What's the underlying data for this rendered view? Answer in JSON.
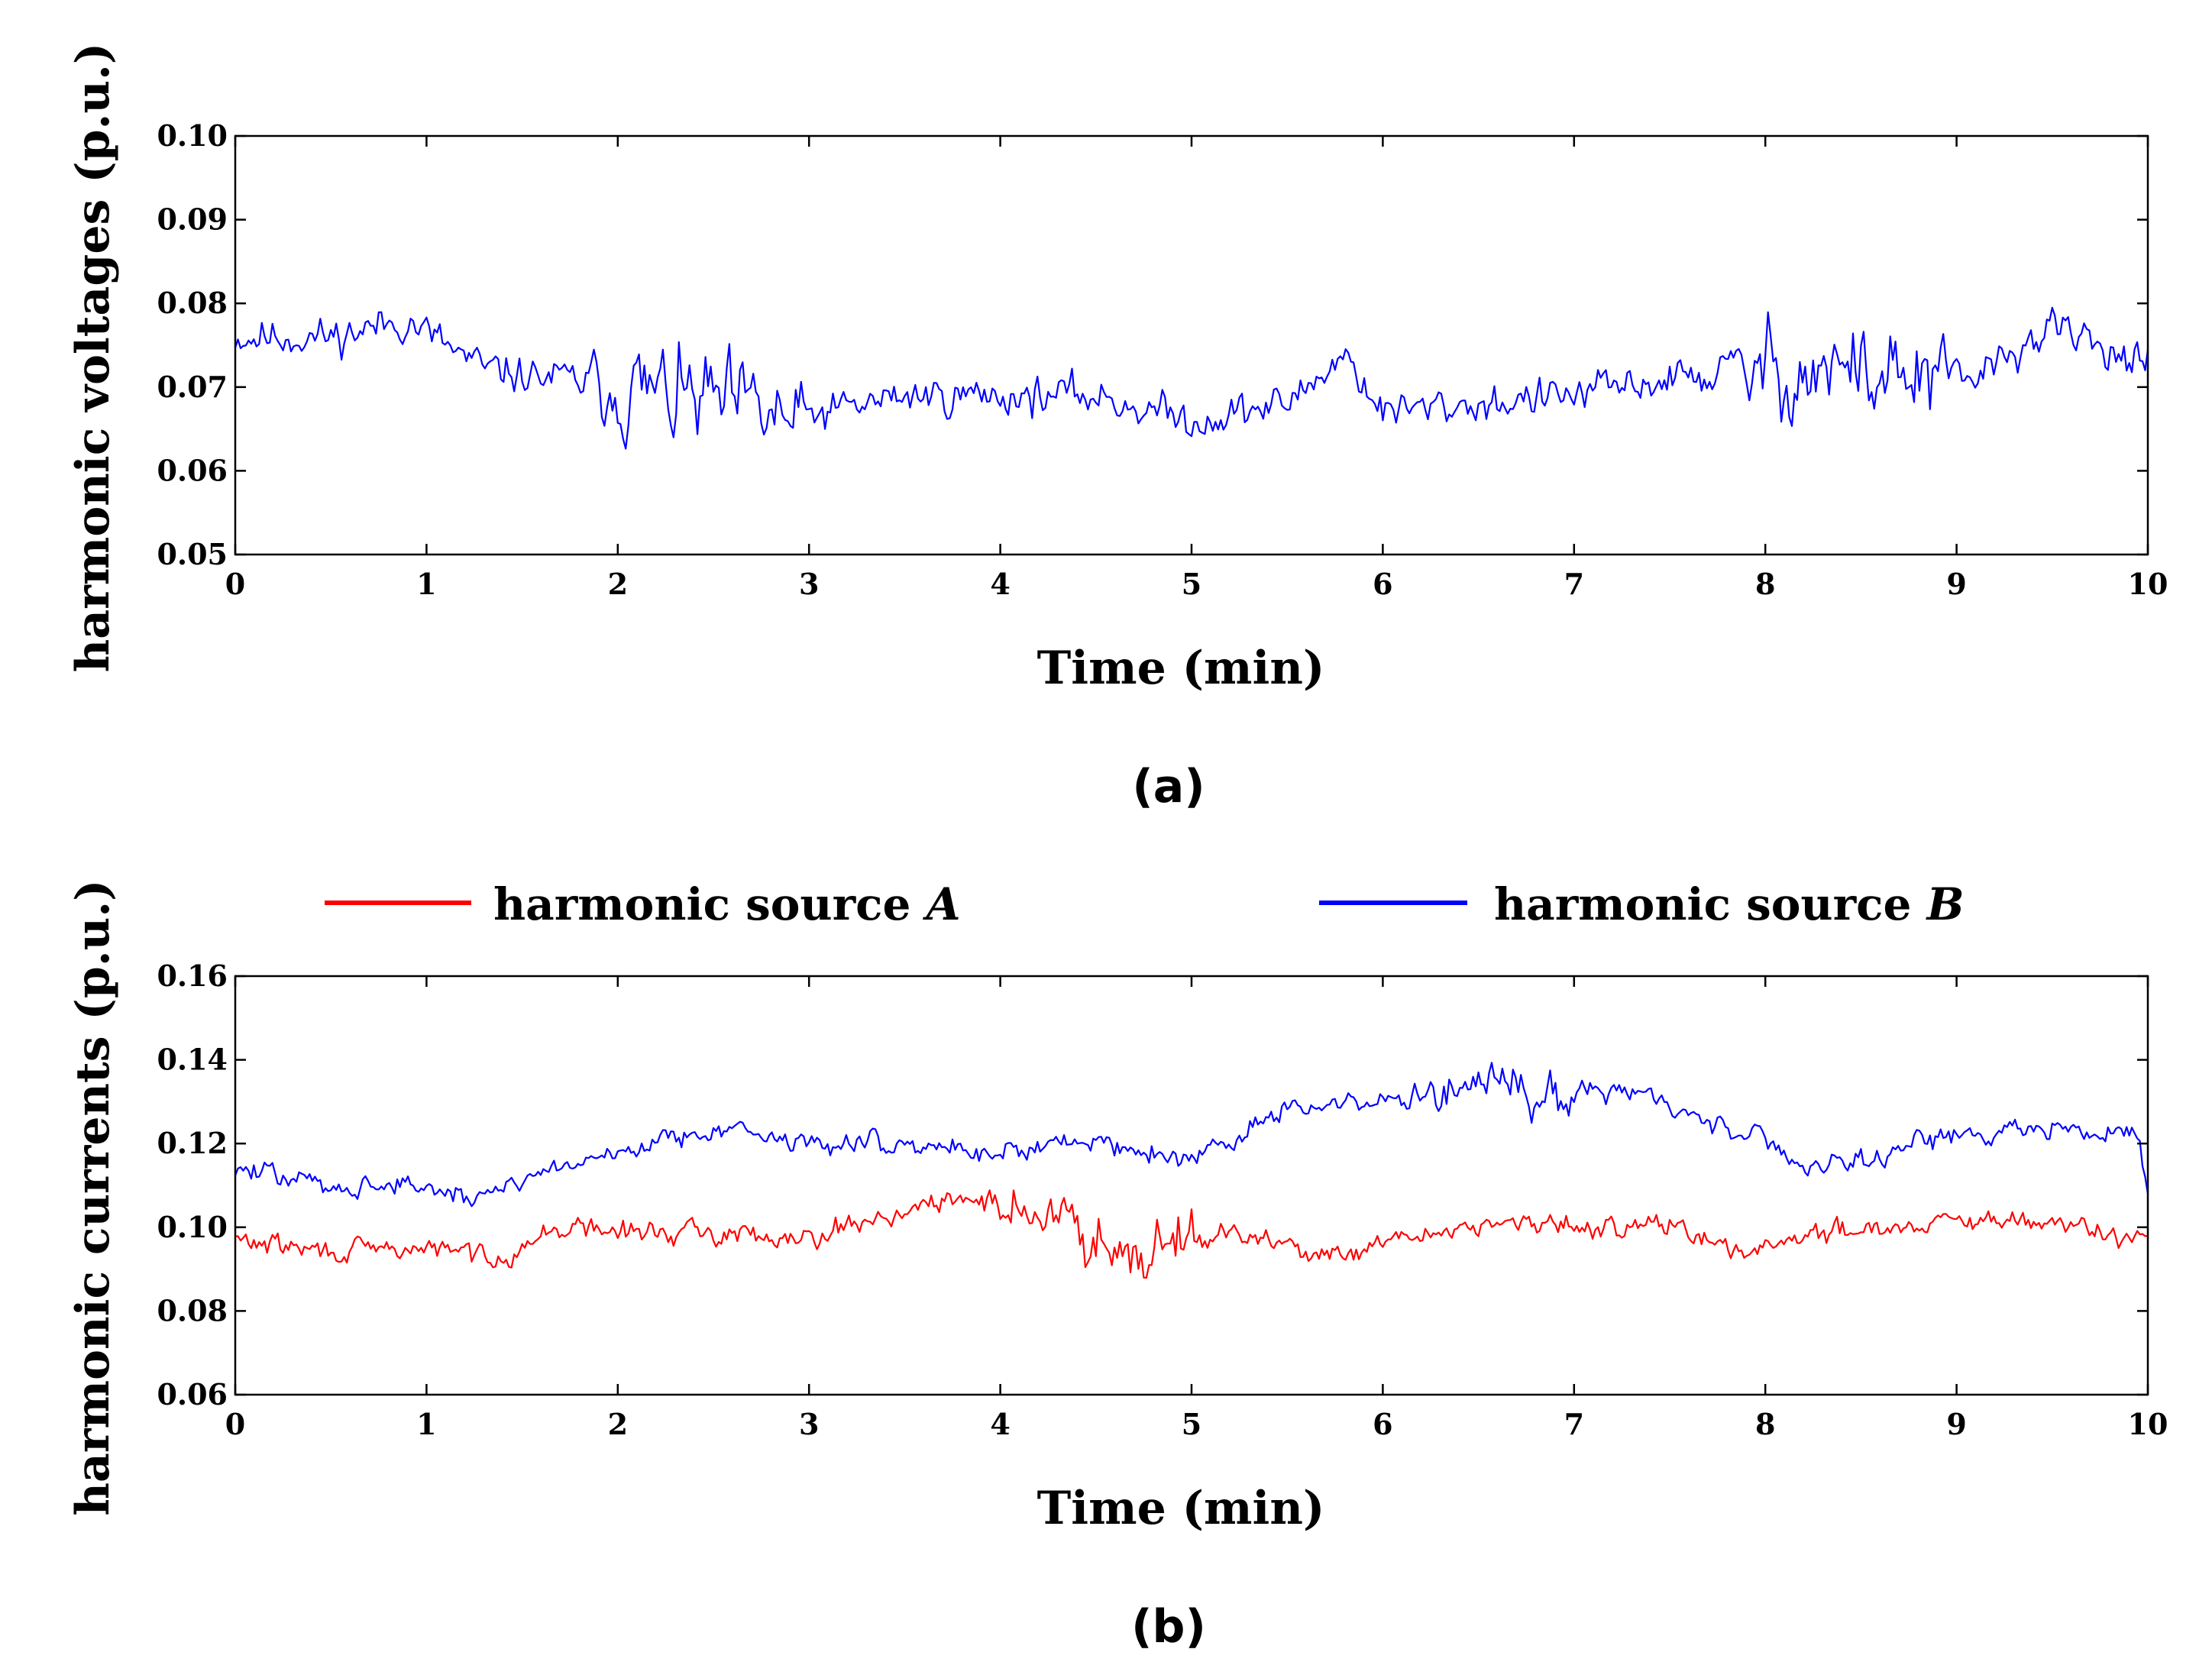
{
  "chart_data": [
    {
      "type": "line",
      "panel_label": "(a)",
      "title": "",
      "xlabel": "Time (min)",
      "ylabel": "harmonic voltages (p.u.)",
      "xlim": [
        0,
        10
      ],
      "ylim": [
        0.05,
        0.1
      ],
      "x_ticks": [
        "0",
        "1",
        "2",
        "3",
        "4",
        "5",
        "6",
        "7",
        "8",
        "9",
        "10"
      ],
      "y_ticks": [
        "0.05",
        "0.06",
        "0.07",
        "0.08",
        "0.09",
        "0.10"
      ],
      "grid": false,
      "series": [
        {
          "name": "harmonic voltage",
          "color": "#0000ff",
          "seed": 11,
          "envelope": [
            [
              0,
              0.076
            ],
            [
              0.5,
              0.076
            ],
            [
              0.9,
              0.078
            ],
            [
              1.3,
              0.072
            ],
            [
              1.7,
              0.071
            ],
            [
              2.0,
              0.07
            ],
            [
              2.5,
              0.068
            ],
            [
              2.9,
              0.066
            ],
            [
              3.5,
              0.069
            ],
            [
              4.0,
              0.069
            ],
            [
              4.5,
              0.069
            ],
            [
              5.0,
              0.066
            ],
            [
              5.5,
              0.068
            ],
            [
              5.8,
              0.074
            ],
            [
              6.0,
              0.067
            ],
            [
              6.5,
              0.068
            ],
            [
              7.0,
              0.069
            ],
            [
              7.5,
              0.071
            ],
            [
              8.0,
              0.072
            ],
            [
              8.5,
              0.072
            ],
            [
              9.0,
              0.07
            ],
            [
              9.5,
              0.077
            ],
            [
              10,
              0.073
            ]
          ],
          "noise": [
            [
              0,
              0.0035
            ],
            [
              1.8,
              0.0035
            ],
            [
              2.0,
              0.009
            ],
            [
              2.9,
              0.009
            ],
            [
              3.0,
              0.0035
            ],
            [
              7.7,
              0.0035
            ],
            [
              8.0,
              0.009
            ],
            [
              8.95,
              0.009
            ],
            [
              9.05,
              0.0035
            ],
            [
              10,
              0.0035
            ]
          ]
        }
      ]
    },
    {
      "type": "line",
      "panel_label": "(b)",
      "title": "",
      "xlabel": "Time (min)",
      "ylabel": "harmonic currents (p.u.)",
      "xlim": [
        0,
        10
      ],
      "ylim": [
        0.06,
        0.16
      ],
      "x_ticks": [
        "0",
        "1",
        "2",
        "3",
        "4",
        "5",
        "6",
        "7",
        "8",
        "9",
        "10"
      ],
      "y_ticks": [
        "0.06",
        "0.08",
        "0.10",
        "0.12",
        "0.14",
        "0.16"
      ],
      "grid": false,
      "legend_position": "top",
      "series": [
        {
          "name": "harmonic source A",
          "label_text": "harmonic source ",
          "label_symbol": "A",
          "color": "#ff0000",
          "seed": 29,
          "envelope": [
            [
              0,
              0.097
            ],
            [
              0.5,
              0.094
            ],
            [
              1.0,
              0.095
            ],
            [
              1.4,
              0.093
            ],
            [
              1.7,
              0.1
            ],
            [
              2.0,
              0.099
            ],
            [
              3.0,
              0.098
            ],
            [
              3.5,
              0.104
            ],
            [
              3.9,
              0.107
            ],
            [
              4.2,
              0.103
            ],
            [
              4.7,
              0.095
            ],
            [
              5.0,
              0.099
            ],
            [
              5.5,
              0.096
            ],
            [
              5.8,
              0.092
            ],
            [
              6.0,
              0.096
            ],
            [
              6.5,
              0.101
            ],
            [
              7.0,
              0.1
            ],
            [
              7.5,
              0.101
            ],
            [
              7.8,
              0.094
            ],
            [
              8.0,
              0.096
            ],
            [
              8.5,
              0.1
            ],
            [
              9.0,
              0.101
            ],
            [
              9.5,
              0.101
            ],
            [
              10,
              0.097
            ]
          ],
          "noise": [
            [
              0,
              0.004
            ],
            [
              3.9,
              0.004
            ],
            [
              4.1,
              0.011
            ],
            [
              4.95,
              0.011
            ],
            [
              5.1,
              0.004
            ],
            [
              10,
              0.004
            ]
          ]
        },
        {
          "name": "harmonic source B",
          "label_text": "harmonic source ",
          "label_symbol": "B",
          "color": "#0000ff",
          "seed": 47,
          "envelope": [
            [
              0,
              0.114
            ],
            [
              0.5,
              0.11
            ],
            [
              1.0,
              0.11
            ],
            [
              1.2,
              0.106
            ],
            [
              1.5,
              0.112
            ],
            [
              2.0,
              0.118
            ],
            [
              2.5,
              0.124
            ],
            [
              3.0,
              0.12
            ],
            [
              3.5,
              0.12
            ],
            [
              4.0,
              0.118
            ],
            [
              4.5,
              0.121
            ],
            [
              5.0,
              0.116
            ],
            [
              5.5,
              0.128
            ],
            [
              6.0,
              0.13
            ],
            [
              6.5,
              0.133
            ],
            [
              7.0,
              0.132
            ],
            [
              7.3,
              0.134
            ],
            [
              7.6,
              0.126
            ],
            [
              8.0,
              0.122
            ],
            [
              8.2,
              0.114
            ],
            [
              8.6,
              0.118
            ],
            [
              9.0,
              0.122
            ],
            [
              9.5,
              0.124
            ],
            [
              9.95,
              0.122
            ],
            [
              10,
              0.106
            ]
          ],
          "noise": [
            [
              0,
              0.004
            ],
            [
              5.9,
              0.004
            ],
            [
              6.0,
              0.008
            ],
            [
              7.0,
              0.008
            ],
            [
              7.2,
              0.004
            ],
            [
              10,
              0.004
            ]
          ]
        }
      ]
    }
  ]
}
